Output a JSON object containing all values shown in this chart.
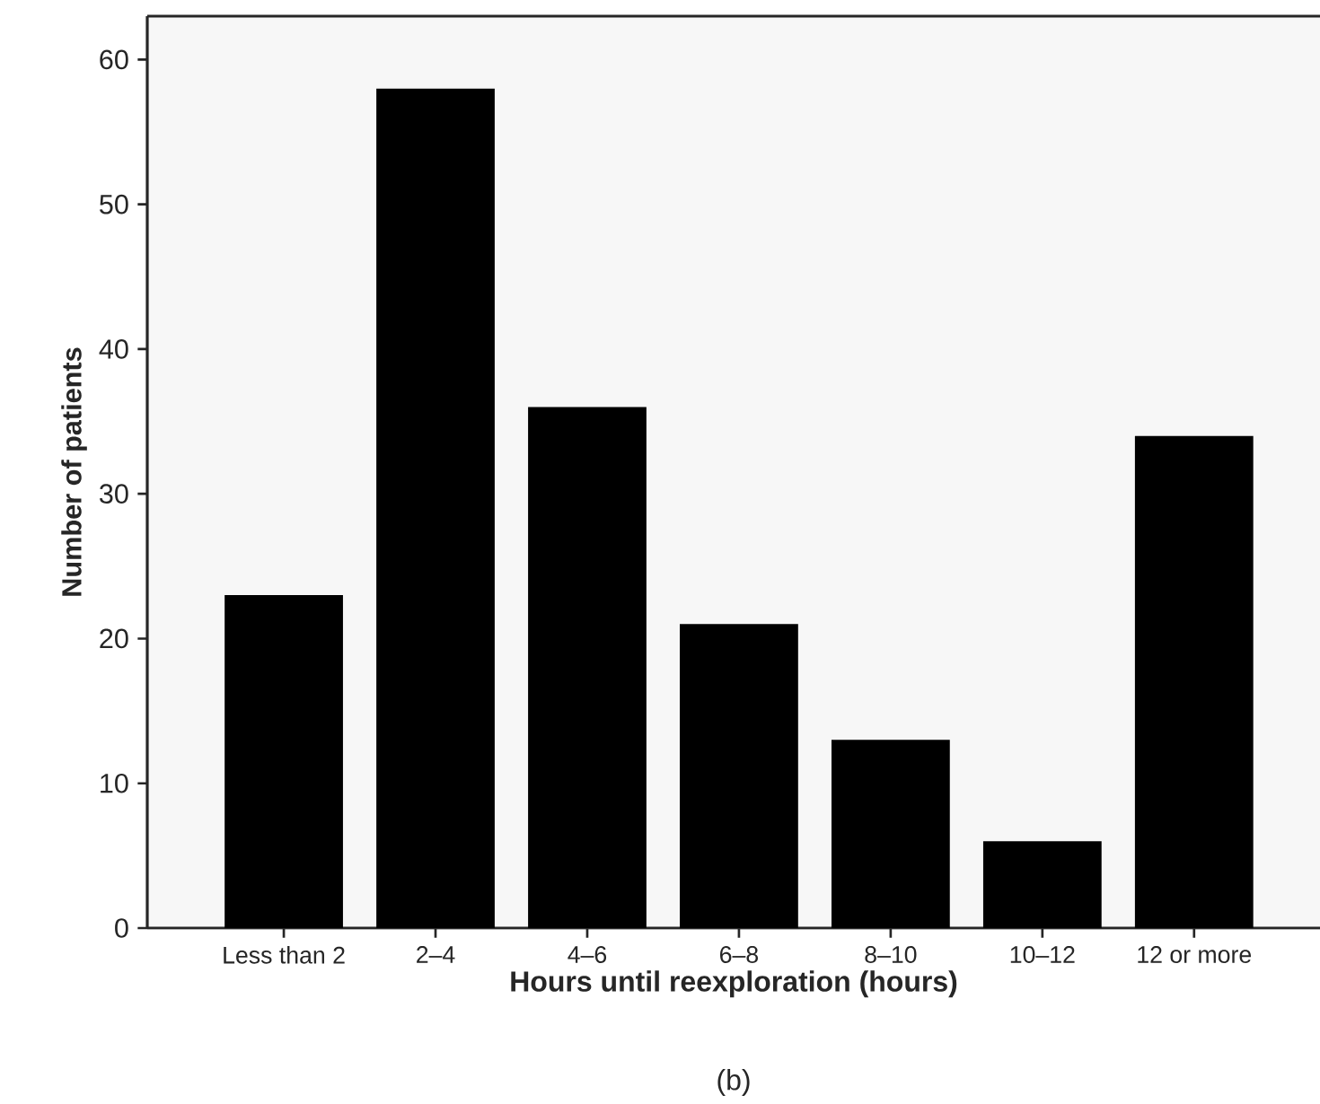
{
  "chart_data": {
    "type": "bar",
    "xlabel": "Hours until reexploration (hours)",
    "ylabel": "Number of patients",
    "categories": [
      "Less than 2",
      "2–4",
      "4–6",
      "6–8",
      "8–10",
      "10–12",
      "12 or more"
    ],
    "values": [
      23,
      58,
      36,
      21,
      13,
      6,
      34
    ],
    "color": "#000000",
    "ylim": [
      0,
      63
    ],
    "yticks": [
      0,
      10,
      20,
      30,
      40,
      50,
      60
    ],
    "grid": false,
    "annotations": [
      "(b)"
    ]
  }
}
